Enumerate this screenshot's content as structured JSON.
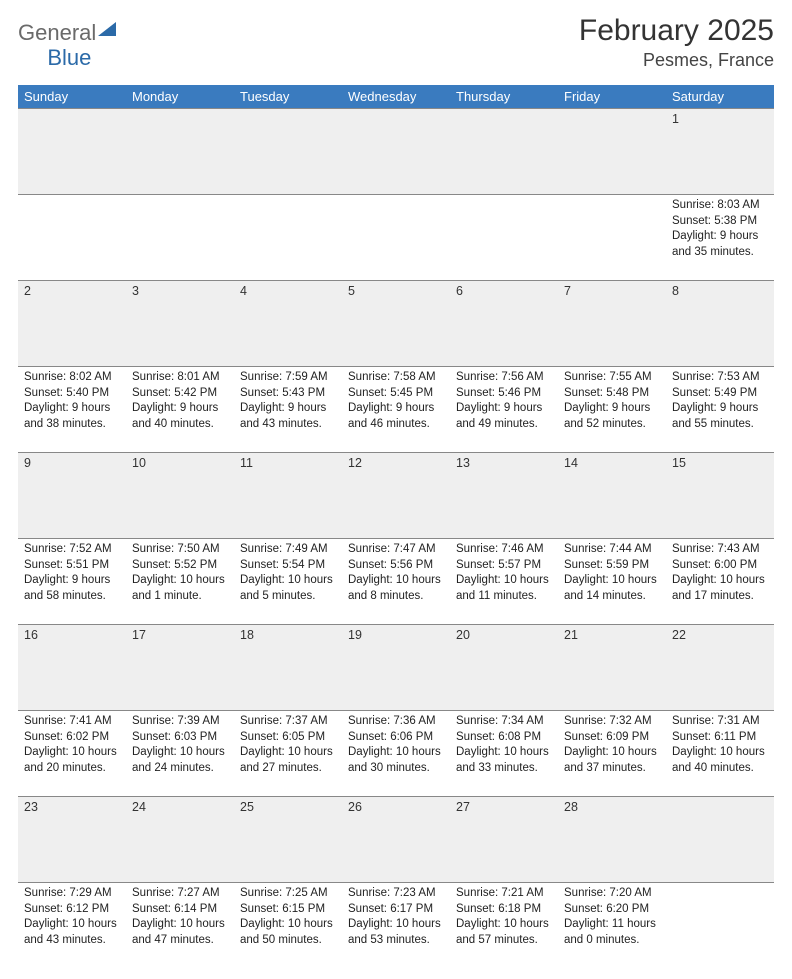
{
  "brand": {
    "word1": "General",
    "word2": "Blue"
  },
  "title": "February 2025",
  "location": "Pesmes, France",
  "colors": {
    "header_bg": "#3a7bbf",
    "header_fg": "#ffffff",
    "daynum_bg": "#efefef",
    "rule": "#888888",
    "logo_accent": "#2b6aa8"
  },
  "weekdays": [
    "Sunday",
    "Monday",
    "Tuesday",
    "Wednesday",
    "Thursday",
    "Friday",
    "Saturday"
  ],
  "weeks": [
    {
      "nums": [
        "",
        "",
        "",
        "",
        "",
        "",
        "1"
      ],
      "cells": [
        null,
        null,
        null,
        null,
        null,
        null,
        {
          "sunrise": "Sunrise: 8:03 AM",
          "sunset": "Sunset: 5:38 PM",
          "day1": "Daylight: 9 hours",
          "day2": "and 35 minutes."
        }
      ]
    },
    {
      "nums": [
        "2",
        "3",
        "4",
        "5",
        "6",
        "7",
        "8"
      ],
      "cells": [
        {
          "sunrise": "Sunrise: 8:02 AM",
          "sunset": "Sunset: 5:40 PM",
          "day1": "Daylight: 9 hours",
          "day2": "and 38 minutes."
        },
        {
          "sunrise": "Sunrise: 8:01 AM",
          "sunset": "Sunset: 5:42 PM",
          "day1": "Daylight: 9 hours",
          "day2": "and 40 minutes."
        },
        {
          "sunrise": "Sunrise: 7:59 AM",
          "sunset": "Sunset: 5:43 PM",
          "day1": "Daylight: 9 hours",
          "day2": "and 43 minutes."
        },
        {
          "sunrise": "Sunrise: 7:58 AM",
          "sunset": "Sunset: 5:45 PM",
          "day1": "Daylight: 9 hours",
          "day2": "and 46 minutes."
        },
        {
          "sunrise": "Sunrise: 7:56 AM",
          "sunset": "Sunset: 5:46 PM",
          "day1": "Daylight: 9 hours",
          "day2": "and 49 minutes."
        },
        {
          "sunrise": "Sunrise: 7:55 AM",
          "sunset": "Sunset: 5:48 PM",
          "day1": "Daylight: 9 hours",
          "day2": "and 52 minutes."
        },
        {
          "sunrise": "Sunrise: 7:53 AM",
          "sunset": "Sunset: 5:49 PM",
          "day1": "Daylight: 9 hours",
          "day2": "and 55 minutes."
        }
      ]
    },
    {
      "nums": [
        "9",
        "10",
        "11",
        "12",
        "13",
        "14",
        "15"
      ],
      "cells": [
        {
          "sunrise": "Sunrise: 7:52 AM",
          "sunset": "Sunset: 5:51 PM",
          "day1": "Daylight: 9 hours",
          "day2": "and 58 minutes."
        },
        {
          "sunrise": "Sunrise: 7:50 AM",
          "sunset": "Sunset: 5:52 PM",
          "day1": "Daylight: 10 hours",
          "day2": "and 1 minute."
        },
        {
          "sunrise": "Sunrise: 7:49 AM",
          "sunset": "Sunset: 5:54 PM",
          "day1": "Daylight: 10 hours",
          "day2": "and 5 minutes."
        },
        {
          "sunrise": "Sunrise: 7:47 AM",
          "sunset": "Sunset: 5:56 PM",
          "day1": "Daylight: 10 hours",
          "day2": "and 8 minutes."
        },
        {
          "sunrise": "Sunrise: 7:46 AM",
          "sunset": "Sunset: 5:57 PM",
          "day1": "Daylight: 10 hours",
          "day2": "and 11 minutes."
        },
        {
          "sunrise": "Sunrise: 7:44 AM",
          "sunset": "Sunset: 5:59 PM",
          "day1": "Daylight: 10 hours",
          "day2": "and 14 minutes."
        },
        {
          "sunrise": "Sunrise: 7:43 AM",
          "sunset": "Sunset: 6:00 PM",
          "day1": "Daylight: 10 hours",
          "day2": "and 17 minutes."
        }
      ]
    },
    {
      "nums": [
        "16",
        "17",
        "18",
        "19",
        "20",
        "21",
        "22"
      ],
      "cells": [
        {
          "sunrise": "Sunrise: 7:41 AM",
          "sunset": "Sunset: 6:02 PM",
          "day1": "Daylight: 10 hours",
          "day2": "and 20 minutes."
        },
        {
          "sunrise": "Sunrise: 7:39 AM",
          "sunset": "Sunset: 6:03 PM",
          "day1": "Daylight: 10 hours",
          "day2": "and 24 minutes."
        },
        {
          "sunrise": "Sunrise: 7:37 AM",
          "sunset": "Sunset: 6:05 PM",
          "day1": "Daylight: 10 hours",
          "day2": "and 27 minutes."
        },
        {
          "sunrise": "Sunrise: 7:36 AM",
          "sunset": "Sunset: 6:06 PM",
          "day1": "Daylight: 10 hours",
          "day2": "and 30 minutes."
        },
        {
          "sunrise": "Sunrise: 7:34 AM",
          "sunset": "Sunset: 6:08 PM",
          "day1": "Daylight: 10 hours",
          "day2": "and 33 minutes."
        },
        {
          "sunrise": "Sunrise: 7:32 AM",
          "sunset": "Sunset: 6:09 PM",
          "day1": "Daylight: 10 hours",
          "day2": "and 37 minutes."
        },
        {
          "sunrise": "Sunrise: 7:31 AM",
          "sunset": "Sunset: 6:11 PM",
          "day1": "Daylight: 10 hours",
          "day2": "and 40 minutes."
        }
      ]
    },
    {
      "nums": [
        "23",
        "24",
        "25",
        "26",
        "27",
        "28",
        ""
      ],
      "cells": [
        {
          "sunrise": "Sunrise: 7:29 AM",
          "sunset": "Sunset: 6:12 PM",
          "day1": "Daylight: 10 hours",
          "day2": "and 43 minutes."
        },
        {
          "sunrise": "Sunrise: 7:27 AM",
          "sunset": "Sunset: 6:14 PM",
          "day1": "Daylight: 10 hours",
          "day2": "and 47 minutes."
        },
        {
          "sunrise": "Sunrise: 7:25 AM",
          "sunset": "Sunset: 6:15 PM",
          "day1": "Daylight: 10 hours",
          "day2": "and 50 minutes."
        },
        {
          "sunrise": "Sunrise: 7:23 AM",
          "sunset": "Sunset: 6:17 PM",
          "day1": "Daylight: 10 hours",
          "day2": "and 53 minutes."
        },
        {
          "sunrise": "Sunrise: 7:21 AM",
          "sunset": "Sunset: 6:18 PM",
          "day1": "Daylight: 10 hours",
          "day2": "and 57 minutes."
        },
        {
          "sunrise": "Sunrise: 7:20 AM",
          "sunset": "Sunset: 6:20 PM",
          "day1": "Daylight: 11 hours",
          "day2": "and 0 minutes."
        },
        null
      ]
    }
  ]
}
